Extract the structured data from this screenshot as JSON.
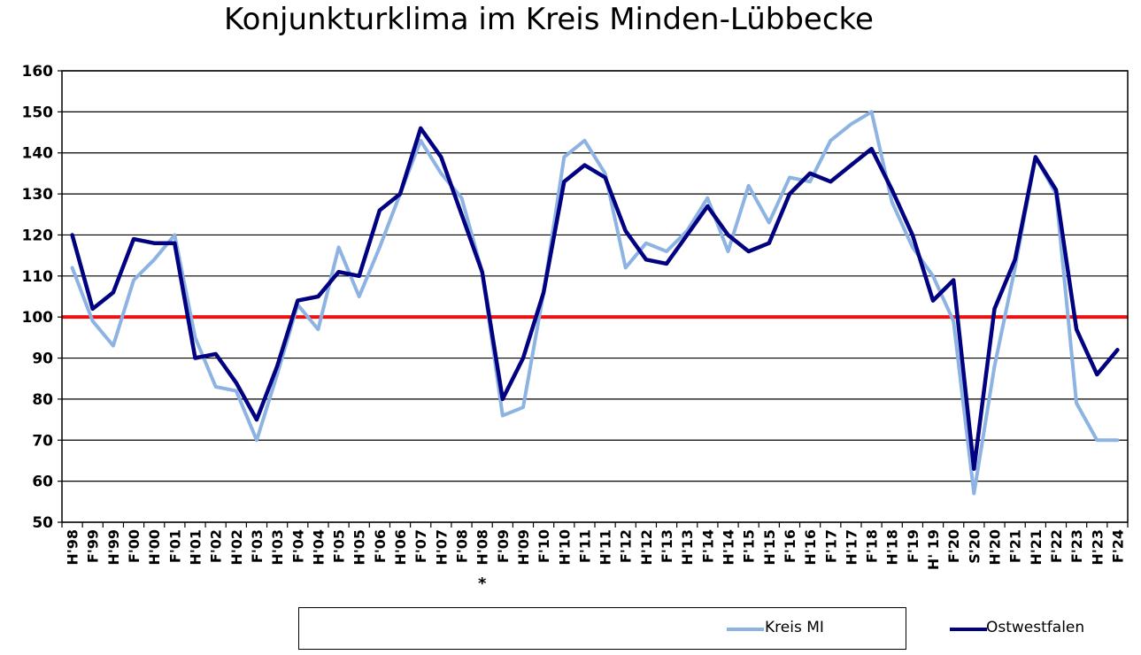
{
  "title": "Konjunkturklima im Kreis Minden-Lübbecke",
  "chart_data": {
    "type": "line",
    "title": "Konjunkturklima im Kreis Minden-Lübbecke",
    "xlabel": "",
    "ylabel": "",
    "ylim": [
      50,
      160
    ],
    "yticks": [
      50,
      60,
      70,
      80,
      90,
      100,
      110,
      120,
      130,
      140,
      150,
      160
    ],
    "grid": "horizontal",
    "legend_position": "bottom",
    "categories": [
      "H'98",
      "F'99",
      "H'99",
      "F'00",
      "H'00",
      "F'01",
      "H'01",
      "F'02",
      "H'02",
      "F'03",
      "H'03",
      "F'04",
      "H'04",
      "F'05",
      "H'05",
      "F'06",
      "H'06",
      "F'07",
      "H'07",
      "F'08",
      "H'08",
      "F'09",
      "H'09",
      "F'10",
      "H'10",
      "F'11",
      "H'11",
      "F'12",
      "H'12",
      "F'13",
      "H'13",
      "F'14",
      "H'14",
      "F'15",
      "H'15",
      "F'16",
      "H'16",
      "F'17",
      "H'17",
      "F'18",
      "H'18",
      "F'19",
      "H' 19",
      "F'20",
      "S'20",
      "H'20",
      "F'21",
      "H'21",
      "F'22",
      "F'23",
      "H'23",
      "F'24"
    ],
    "annotation": {
      "category": "H'08",
      "text": "*"
    },
    "reference_line": {
      "value": 100,
      "color": "#ee1111"
    },
    "series": [
      {
        "name": "Kreis MI",
        "color": "#8db3e2",
        "values": [
          112,
          99,
          93,
          109,
          114,
          120,
          95,
          83,
          82,
          70,
          86,
          103,
          97,
          117,
          105,
          117,
          130,
          143,
          135,
          129,
          111,
          76,
          78,
          106,
          139,
          143,
          135,
          112,
          118,
          116,
          121,
          129,
          116,
          132,
          123,
          134,
          133,
          143,
          147,
          150,
          128,
          117,
          110,
          99,
          57,
          88,
          112,
          139,
          130,
          79,
          70,
          70
        ]
      },
      {
        "name": "Ostwestfalen",
        "color": "#000080",
        "values": [
          120,
          102,
          106,
          119,
          118,
          118,
          90,
          91,
          84,
          75,
          88,
          104,
          105,
          111,
          110,
          126,
          130,
          146,
          139,
          125,
          111,
          80,
          90,
          106,
          133,
          137,
          134,
          121,
          114,
          113,
          120,
          127,
          120,
          116,
          118,
          130,
          135,
          133,
          137,
          141,
          131,
          120,
          104,
          109,
          63,
          102,
          114,
          139,
          131,
          97,
          86,
          92
        ]
      }
    ]
  }
}
